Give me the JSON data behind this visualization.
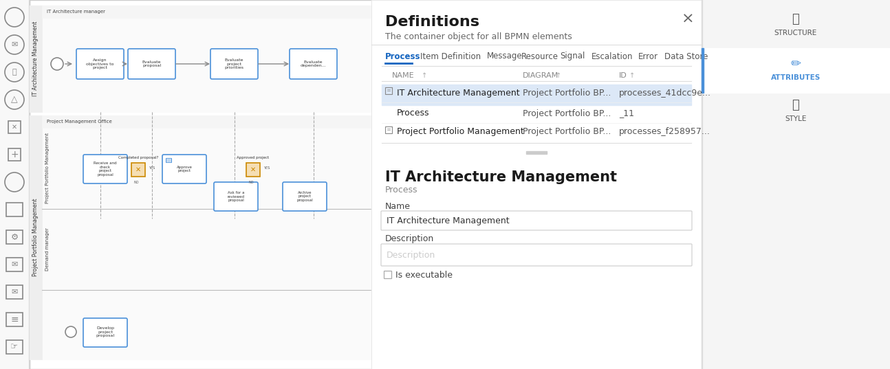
{
  "bg_color": "#f0f0f0",
  "panel_bg": "#ffffff",
  "sidebar_bg": "#f5f5f5",
  "title": "Definitions",
  "subtitle": "The container object for all BPMN elements",
  "tabs": [
    "Process",
    "Item Definition",
    "Message",
    "Resource",
    "Signal",
    "Escalation",
    "Error",
    "Data Store"
  ],
  "active_tab": "Process",
  "table_headers": [
    "NAME",
    "DIAGRAM",
    "ID"
  ],
  "table_rows": [
    {
      "name": "IT Architecture Management",
      "diagram": "Project Portfolio BP...",
      "id": "processes_41dcc9e...",
      "selected": true,
      "has_icon": true
    },
    {
      "name": "Process",
      "diagram": "Project Portfolio BP...",
      "id": "_11",
      "selected": false,
      "has_icon": false
    },
    {
      "name": "Project Portfolio Management",
      "diagram": "Project Portfolio BP...",
      "id": "processes_f258957...",
      "selected": false,
      "has_icon": true
    }
  ],
  "detail_title": "IT Architecture Management",
  "detail_subtitle": "Process",
  "name_label": "Name",
  "name_value": "IT Architecture Management",
  "desc_label": "Description",
  "desc_placeholder": "Description",
  "checkbox_label": "Is executable",
  "right_panel_buttons": [
    "STRUCTURE",
    "ATTRIBUTES",
    "STYLE"
  ],
  "active_right_btn": "ATTRIBUTES",
  "selected_row_color": "#dce8f7",
  "tab_active_color": "#1565c0",
  "tab_inactive_color": "#555555",
  "header_color": "#555555",
  "input_border_color": "#cccccc",
  "input_bg": "#ffffff",
  "detail_title_color": "#1a1a1a",
  "detail_subtitle_color": "#555555",
  "left_toolbar_bg": "#f8f8f8",
  "bpmn_bg": "#ffffff",
  "divider_color": "#cccccc"
}
